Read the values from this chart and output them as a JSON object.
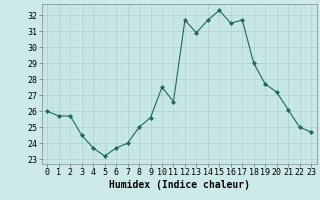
{
  "x": [
    0,
    1,
    2,
    3,
    4,
    5,
    6,
    7,
    8,
    9,
    10,
    11,
    12,
    13,
    14,
    15,
    16,
    17,
    18,
    19,
    20,
    21,
    22,
    23
  ],
  "y": [
    26.0,
    25.7,
    25.7,
    24.5,
    23.7,
    23.2,
    23.7,
    24.0,
    25.0,
    25.6,
    27.5,
    26.6,
    31.7,
    30.9,
    31.7,
    32.3,
    31.5,
    31.7,
    29.0,
    27.7,
    27.2,
    26.1,
    25.0,
    24.7
  ],
  "line_color": "#1a6b5a",
  "marker": "D",
  "marker_size": 2.0,
  "bg_color": "#cceaea",
  "grid_major_color": "#aacccc",
  "grid_minor_color": "#bddcdc",
  "xlabel": "Humidex (Indice chaleur)",
  "xlabel_fontsize": 7,
  "ylabel_ticks": [
    23,
    24,
    25,
    26,
    27,
    28,
    29,
    30,
    31,
    32
  ],
  "ylim": [
    22.7,
    32.7
  ],
  "xlim": [
    -0.5,
    23.5
  ],
  "tick_fontsize": 6.0
}
